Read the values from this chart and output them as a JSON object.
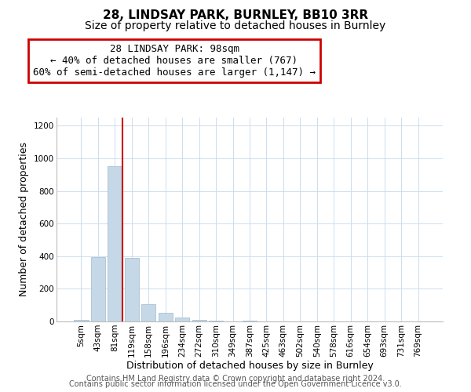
{
  "title": "28, LINDSAY PARK, BURNLEY, BB10 3RR",
  "subtitle": "Size of property relative to detached houses in Burnley",
  "xlabel": "Distribution of detached houses by size in Burnley",
  "ylabel": "Number of detached properties",
  "bar_labels": [
    "5sqm",
    "43sqm",
    "81sqm",
    "119sqm",
    "158sqm",
    "196sqm",
    "234sqm",
    "272sqm",
    "310sqm",
    "349sqm",
    "387sqm",
    "425sqm",
    "463sqm",
    "502sqm",
    "540sqm",
    "578sqm",
    "616sqm",
    "654sqm",
    "693sqm",
    "731sqm",
    "769sqm"
  ],
  "bar_values": [
    10,
    395,
    950,
    390,
    105,
    52,
    22,
    10,
    5,
    0,
    5,
    0,
    0,
    0,
    0,
    0,
    0,
    0,
    0,
    0,
    0
  ],
  "bar_color": "#c5d8e8",
  "bar_edge_color": "#a0b8cc",
  "annotation_text": "28 LINDSAY PARK: 98sqm\n← 40% of detached houses are smaller (767)\n60% of semi-detached houses are larger (1,147) →",
  "annotation_box_color": "#cc0000",
  "ylim": [
    0,
    1250
  ],
  "yticks": [
    0,
    200,
    400,
    600,
    800,
    1000,
    1200
  ],
  "grid_color": "#ccddee",
  "background_color": "#ffffff",
  "footer_line1": "Contains HM Land Registry data © Crown copyright and database right 2024.",
  "footer_line2": "Contains public sector information licensed under the Open Government Licence v3.0.",
  "title_fontsize": 11,
  "subtitle_fontsize": 10,
  "xlabel_fontsize": 9,
  "ylabel_fontsize": 9,
  "tick_fontsize": 7.5,
  "annotation_fontsize": 9,
  "footer_fontsize": 7
}
